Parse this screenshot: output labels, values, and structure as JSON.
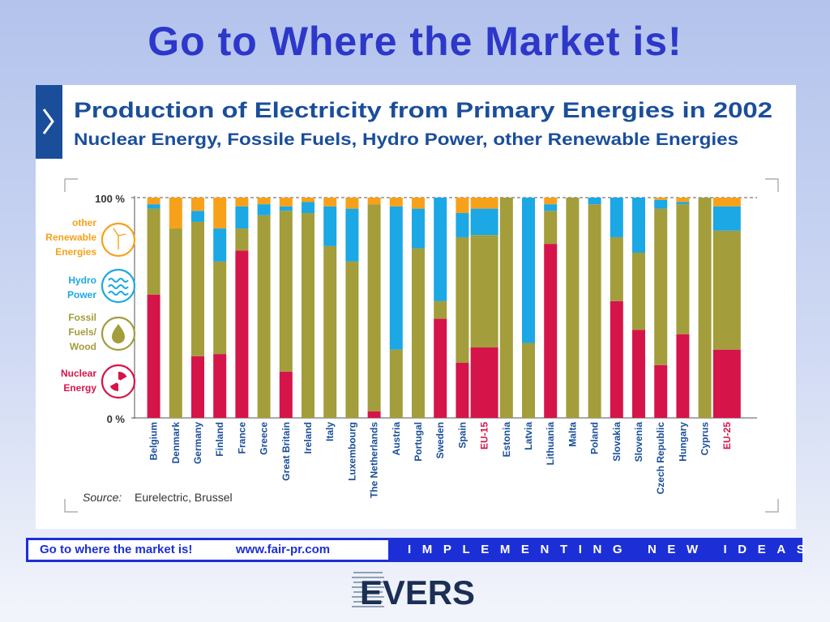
{
  "slide": {
    "title": "Go to Where the Market is!"
  },
  "footer": {
    "slogan": "Go to where the market is!",
    "url": "www.fair-pr.com",
    "tagline": "IMPLEMENTING NEW IDEAS"
  },
  "logo": {
    "text": "EVERS"
  },
  "colors": {
    "title": "#2d37c9",
    "panel_title": "#1a4e9a",
    "nuclear": "#d5154a",
    "fossil": "#a39d3b",
    "hydro": "#1ba8e4",
    "renewable": "#f7a11a",
    "eu_label": "#d5154a",
    "footer_blue": "#1c2fd6"
  },
  "chart_data": {
    "type": "bar",
    "stacked": true,
    "title": "Production of Electricity from Primary Energies in 2002",
    "subtitle": "Nuclear Energy, Fossile Fuels, Hydro Power, other Renewable Energies",
    "source_label": "Source:",
    "source_text": "Eurelectric, Brussel",
    "ylim": [
      0,
      100
    ],
    "y_ticks": [
      "100 %",
      "0 %"
    ],
    "legend_position": "left",
    "highlight_categories": [
      "EU-15",
      "EU-25"
    ],
    "categories": [
      "Belgium",
      "Denmark",
      "Germany",
      "Finland",
      "France",
      "Greece",
      "Great Britain",
      "Ireland",
      "Italy",
      "Luxembourg",
      "The Netherlands",
      "Austria",
      "Portugal",
      "Sweden",
      "Spain",
      "EU-15",
      "Estonia",
      "Latvia",
      "Lithuania",
      "Malta",
      "Poland",
      "Slovakia",
      "Slovenia",
      "Czech Republic",
      "Hungary",
      "Cyprus",
      "EU-25"
    ],
    "series": [
      {
        "name": "Nuclear Energy",
        "color": "#d5154a",
        "icon": "radiation-icon",
        "values": [
          56,
          0,
          28,
          29,
          76,
          0,
          21,
          0,
          0,
          0,
          3,
          0,
          0,
          45,
          25,
          32,
          0,
          0,
          79,
          0,
          0,
          53,
          40,
          24,
          38,
          0,
          31
        ]
      },
      {
        "name": "Fossil Fuels/ Wood",
        "color": "#a39d3b",
        "icon": "oil-drop-icon",
        "values": [
          39,
          86,
          61,
          42,
          10,
          92,
          73,
          93,
          78,
          71,
          94,
          31,
          77,
          8,
          57,
          51,
          100,
          34,
          15,
          100,
          97,
          29,
          35,
          71,
          59,
          100,
          54
        ]
      },
      {
        "name": "Hydro Power",
        "color": "#1ba8e4",
        "icon": "waves-icon",
        "values": [
          2,
          0,
          5,
          15,
          10,
          5,
          2,
          5,
          18,
          24,
          0,
          65,
          18,
          47,
          11,
          12,
          0,
          66,
          3,
          0,
          3,
          18,
          25,
          4,
          1,
          0,
          11
        ]
      },
      {
        "name": "other Renewable Energies",
        "color": "#f7a11a",
        "icon": "wind-turbine-icon",
        "values": [
          3,
          14,
          6,
          14,
          4,
          3,
          4,
          2,
          4,
          5,
          3,
          4,
          5,
          0,
          7,
          5,
          0,
          0,
          3,
          0,
          0,
          0,
          0,
          1,
          2,
          0,
          4
        ]
      }
    ]
  }
}
